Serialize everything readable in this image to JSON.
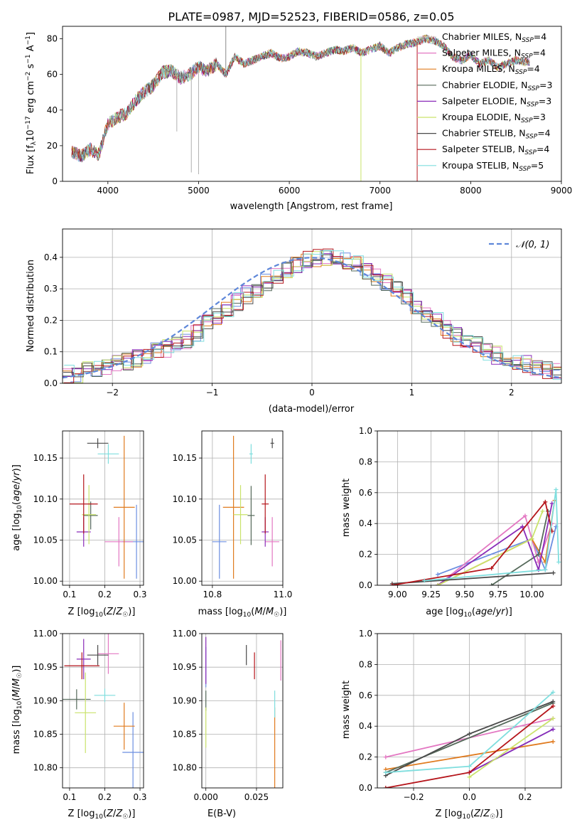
{
  "figure_title": "PLATE=0987, MJD=52523, FIBERID=0586, z=0.05",
  "colors": [
    "#d6d6d6",
    "#e377c2",
    "#e07b1f",
    "#55695a",
    "#8a2bb8",
    "#c9e36a",
    "#4a4a4a",
    "#b5151b",
    "#7fdede"
  ],
  "ssp_colors": [
    "#6b8ee0",
    "#e377c2",
    "#e07b1f",
    "#55695a",
    "#8a2bb8",
    "#c9e36a",
    "#4a4a4a",
    "#b5151b",
    "#7fdede"
  ],
  "legend": [
    {
      "main": "Chabrier MILES, N",
      "sub": "SSP",
      "suffix": "=4"
    },
    {
      "main": "Salpeter MILES, N",
      "sub": "SSP",
      "suffix": "=4"
    },
    {
      "main": "Kroupa MILES, N",
      "sub": "SSP",
      "suffix": "=4"
    },
    {
      "main": "Chabrier ELODIE, N",
      "sub": "SSP",
      "suffix": "=3"
    },
    {
      "main": "Salpeter ELODIE, N",
      "sub": "SSP",
      "suffix": "=3"
    },
    {
      "main": "Kroupa ELODIE, N",
      "sub": "SSP",
      "suffix": "=3"
    },
    {
      "main": "Chabrier STELIB, N",
      "sub": "SSP",
      "suffix": "=4"
    },
    {
      "main": "Salpeter STELIB, N",
      "sub": "SSP",
      "suffix": "=4"
    },
    {
      "main": "Kroupa STELIB, N",
      "sub": "SSP",
      "suffix": "=5"
    }
  ],
  "chart_data": [
    {
      "id": "spectrum",
      "type": "line",
      "xlabel": "wavelength [Angstrom, rest frame]",
      "ylabel": "Flux [f_λ 10^-17 erg cm^-2 s^-1 A^-1]",
      "xlim": [
        3500,
        9000
      ],
      "ylim": [
        0,
        87
      ],
      "xticks": [
        4000,
        5000,
        6000,
        7000,
        8000,
        9000
      ],
      "yticks": [
        0,
        20,
        40,
        60,
        80
      ],
      "grid": false,
      "legend_position": "right",
      "x": [
        3600,
        3700,
        3800,
        3900,
        4000,
        4100,
        4200,
        4300,
        4400,
        4500,
        4600,
        4700,
        4800,
        4900,
        5000,
        5100,
        5200,
        5300,
        5400,
        5500,
        5600,
        5700,
        5800,
        5900,
        6000,
        6100,
        6200,
        6300,
        6400,
        6500,
        6600,
        6700,
        6800,
        6900,
        7000,
        7100,
        7200,
        7300,
        7400,
        7500,
        7600,
        7700,
        7800,
        7900,
        8000,
        8100,
        8200,
        8300,
        8400,
        8500,
        8600
      ],
      "y": [
        17,
        14,
        18,
        15,
        32,
        36,
        38,
        45,
        50,
        54,
        61,
        62,
        58,
        60,
        64,
        62,
        66,
        60,
        70,
        66,
        68,
        70,
        72,
        69,
        70,
        73,
        72,
        70,
        72,
        74,
        73,
        75,
        72,
        74,
        76,
        72,
        75,
        77,
        78,
        80,
        79,
        76,
        70,
        68,
        71,
        66,
        68,
        64,
        66,
        68,
        67
      ],
      "dips": [
        [
          3880,
          12
        ],
        [
          4760,
          28
        ],
        [
          4920,
          5
        ],
        [
          5000,
          4
        ],
        [
          6790,
          0
        ],
        [
          7410,
          0
        ]
      ],
      "spike": [
        5300,
        87
      ]
    },
    {
      "id": "residuals",
      "type": "line",
      "xlabel": "(data-model)/error",
      "ylabel": "Normed distribution",
      "xlim": [
        -2.5,
        2.5
      ],
      "ylim": [
        0,
        0.49
      ],
      "xticks": [
        -2,
        -1,
        0,
        1,
        2
      ],
      "yticks": [
        0.0,
        0.1,
        0.2,
        0.3,
        0.4
      ],
      "grid": true,
      "legend": [
        {
          "label": "𝒩(0, 1)"
        }
      ],
      "legend_position": "top-right",
      "bin_width": 0.1,
      "bins_start": -2.5,
      "histogram": [
        0.03,
        0.03,
        0.04,
        0.04,
        0.05,
        0.06,
        0.07,
        0.08,
        0.09,
        0.1,
        0.11,
        0.13,
        0.14,
        0.16,
        0.19,
        0.21,
        0.23,
        0.26,
        0.28,
        0.3,
        0.32,
        0.34,
        0.36,
        0.38,
        0.39,
        0.4,
        0.4,
        0.4,
        0.39,
        0.38,
        0.36,
        0.34,
        0.32,
        0.3,
        0.27,
        0.25,
        0.22,
        0.2,
        0.17,
        0.15,
        0.13,
        0.12,
        0.1,
        0.09,
        0.08,
        0.07,
        0.06,
        0.05,
        0.04,
        0.04
      ]
    },
    {
      "id": "age-vs-Z",
      "type": "scatter",
      "xlabel": "Z [log10(Z/Z☉)]",
      "ylabel": "age [log10(age/yr)]",
      "xlim": [
        0.08,
        0.31
      ],
      "ylim": [
        9.995,
        10.183
      ],
      "xticks": [
        0.1,
        0.2,
        0.3
      ],
      "yticks": [
        10.0,
        10.05,
        10.1,
        10.15
      ],
      "grid": true,
      "points": [
        {
          "x": 0.29,
          "y": 10.048,
          "xerr": 0.04,
          "yerr": 0.045
        },
        {
          "x": 0.24,
          "y": 10.048,
          "xerr": 0.04,
          "yerr": 0.03
        },
        {
          "x": 0.255,
          "y": 10.09,
          "xerr": 0.03,
          "yerr": 0.087
        },
        {
          "x": 0.16,
          "y": 10.08,
          "xerr": 0.02,
          "yerr": 0.017
        },
        {
          "x": 0.14,
          "y": 10.06,
          "xerr": 0.02,
          "yerr": 0.018
        },
        {
          "x": 0.155,
          "y": 10.081,
          "xerr": 0.02,
          "yerr": 0.036
        },
        {
          "x": 0.18,
          "y": 10.168,
          "xerr": 0.03,
          "yerr": 0.006
        },
        {
          "x": 0.14,
          "y": 10.094,
          "xerr": 0.04,
          "yerr": 0.036
        },
        {
          "x": 0.21,
          "y": 10.155,
          "xerr": 0.03,
          "yerr": 0.012
        }
      ]
    },
    {
      "id": "age-vs-mass",
      "type": "scatter",
      "xlabel": "mass [log10(M/M☉)]",
      "ylabel": "",
      "xlim": [
        10.77,
        11.0
      ],
      "ylim": [
        9.995,
        10.183
      ],
      "xticks": [
        10.8,
        11.0
      ],
      "yticks": [
        10.0,
        10.05,
        10.1,
        10.15
      ],
      "grid": true,
      "points": [
        {
          "x": 10.82,
          "y": 10.048,
          "xerr": 0.02,
          "yerr": 0.045
        },
        {
          "x": 10.97,
          "y": 10.048,
          "xerr": 0.02,
          "yerr": 0.03
        },
        {
          "x": 10.86,
          "y": 10.09,
          "xerr": 0.03,
          "yerr": 0.087
        },
        {
          "x": 10.91,
          "y": 10.08,
          "xerr": 0.01,
          "yerr": 0.036
        },
        {
          "x": 10.95,
          "y": 10.06,
          "xerr": 0.01,
          "yerr": 0.018
        },
        {
          "x": 10.88,
          "y": 10.081,
          "xerr": 0.02,
          "yerr": 0.036
        },
        {
          "x": 10.97,
          "y": 10.168,
          "xerr": 0.005,
          "yerr": 0.006
        },
        {
          "x": 10.95,
          "y": 10.094,
          "xerr": 0.01,
          "yerr": 0.036
        },
        {
          "x": 10.91,
          "y": 10.155,
          "xerr": 0.005,
          "yerr": 0.012
        }
      ]
    },
    {
      "id": "mass-weight-vs-age",
      "type": "line",
      "xlabel": "age [log10(age/yr)]",
      "ylabel": "mass weight",
      "xlim": [
        8.85,
        10.22
      ],
      "ylim": [
        0,
        1
      ],
      "xticks": [
        9.0,
        9.25,
        9.5,
        9.75,
        10.0
      ],
      "yticks": [
        0.0,
        0.2,
        0.4,
        0.6,
        0.8,
        1.0
      ],
      "grid": true,
      "series": [
        {
          "x": [
            9.3,
            10.0,
            10.1,
            10.18
          ],
          "y": [
            0.07,
            0.3,
            0.1,
            0.38
          ]
        },
        {
          "x": [
            9.3,
            9.95,
            10.05,
            10.15
          ],
          "y": [
            0.0,
            0.45,
            0.15,
            0.4
          ]
        },
        {
          "x": [
            9.3,
            10.0,
            10.1,
            10.17
          ],
          "y": [
            0.0,
            0.3,
            0.15,
            0.55
          ]
        },
        {
          "x": [
            9.7,
            10.05,
            10.12
          ],
          "y": [
            0.0,
            0.2,
            0.48
          ]
        },
        {
          "x": [
            9.3,
            9.93,
            10.05,
            10.15
          ],
          "y": [
            0.0,
            0.38,
            0.1,
            0.53
          ]
        },
        {
          "x": [
            9.3,
            10.0,
            10.08
          ],
          "y": [
            0.0,
            0.3,
            0.48
          ]
        },
        {
          "x": [
            8.96,
            10.16
          ],
          "y": [
            0.01,
            0.08
          ]
        },
        {
          "x": [
            8.96,
            9.7,
            10.1,
            10.15
          ],
          "y": [
            0.0,
            0.11,
            0.54,
            0.35
          ]
        },
        {
          "x": [
            9.2,
            10.1,
            10.18,
            10.2
          ],
          "y": [
            0.03,
            0.1,
            0.62,
            0.15
          ]
        }
      ]
    },
    {
      "id": "mass-vs-Z",
      "type": "scatter",
      "xlabel": "Z [log10(Z/Z☉)]",
      "ylabel": "mass [log10(M/M☉)]",
      "xlim": [
        0.08,
        0.31
      ],
      "ylim": [
        10.77,
        11.0
      ],
      "xticks": [
        0.1,
        0.2,
        0.3
      ],
      "yticks": [
        10.8,
        10.85,
        10.9,
        10.95,
        11.0
      ],
      "grid": true,
      "points": [
        {
          "x": 0.28,
          "y": 10.823,
          "xerr": 0.03,
          "yerr": 0.06
        },
        {
          "x": 0.21,
          "y": 10.97,
          "xerr": 0.03,
          "yerr": 0.03
        },
        {
          "x": 0.255,
          "y": 10.862,
          "xerr": 0.03,
          "yerr": 0.035
        },
        {
          "x": 0.12,
          "y": 10.902,
          "xerr": 0.04,
          "yerr": 0.015
        },
        {
          "x": 0.14,
          "y": 10.962,
          "xerr": 0.02,
          "yerr": 0.03
        },
        {
          "x": 0.145,
          "y": 10.882,
          "xerr": 0.03,
          "yerr": 0.06
        },
        {
          "x": 0.18,
          "y": 10.968,
          "xerr": 0.03,
          "yerr": 0.015
        },
        {
          "x": 0.135,
          "y": 10.952,
          "xerr": 0.05,
          "yerr": 0.02
        },
        {
          "x": 0.2,
          "y": 10.908,
          "xerr": 0.03,
          "yerr": 0.01
        }
      ]
    },
    {
      "id": "mass-vs-EBV",
      "type": "scatter",
      "xlabel": "E(B-V)",
      "ylabel": "",
      "xlim": [
        -0.002,
        0.038
      ],
      "ylim": [
        10.77,
        11.0
      ],
      "xticks": [
        0.0,
        0.025
      ],
      "yticks": [
        10.8,
        10.85,
        10.9,
        10.95,
        11.0
      ],
      "grid": true,
      "points": [
        {
          "x": 0.0,
          "y": 10.95,
          "xerr": 0.0,
          "yerr": 0.03
        },
        {
          "x": 0.037,
          "y": 10.96,
          "xerr": 0.0,
          "yerr": 0.03
        },
        {
          "x": 0.034,
          "y": 10.83,
          "xerr": 0.0,
          "yerr": 0.06
        },
        {
          "x": 0.0,
          "y": 10.9,
          "xerr": 0.0,
          "yerr": 0.015
        },
        {
          "x": 0.0,
          "y": 10.96,
          "xerr": 0.0,
          "yerr": 0.035
        },
        {
          "x": 0.0,
          "y": 10.86,
          "xerr": 0.0,
          "yerr": 0.03
        },
        {
          "x": 0.02,
          "y": 10.968,
          "xerr": 0.0,
          "yerr": 0.015
        },
        {
          "x": 0.024,
          "y": 10.952,
          "xerr": 0.0,
          "yerr": 0.02
        },
        {
          "x": 0.034,
          "y": 10.895,
          "xerr": 0.0,
          "yerr": 0.02
        }
      ]
    },
    {
      "id": "mass-weight-vs-Z",
      "type": "line",
      "xlabel": "Z [log10(Z/Z☉)]",
      "ylabel": "mass weight",
      "xlim": [
        -0.33,
        0.33
      ],
      "ylim": [
        0,
        1
      ],
      "xticks": [
        -0.2,
        0.0,
        0.2
      ],
      "yticks": [
        0.0,
        0.2,
        0.4,
        0.6,
        0.8,
        1.0
      ],
      "grid": true,
      "series": [
        {
          "x": [
            0.0,
            0.3
          ],
          "y": [
            0.1,
            0.38
          ]
        },
        {
          "x": [
            -0.3,
            0.3
          ],
          "y": [
            0.2,
            0.45
          ]
        },
        {
          "x": [
            -0.3,
            0.3
          ],
          "y": [
            0.12,
            0.3
          ]
        },
        {
          "x": [
            -0.3,
            0.3
          ],
          "y": [
            0.1,
            0.55
          ]
        },
        {
          "x": [
            0.0,
            0.3
          ],
          "y": [
            0.1,
            0.38
          ]
        },
        {
          "x": [
            0.0,
            0.3
          ],
          "y": [
            0.07,
            0.45
          ]
        },
        {
          "x": [
            -0.3,
            0.0,
            0.3
          ],
          "y": [
            0.08,
            0.35,
            0.56
          ]
        },
        {
          "x": [
            -0.3,
            0.0,
            0.3
          ],
          "y": [
            0.0,
            0.1,
            0.53
          ]
        },
        {
          "x": [
            -0.3,
            0.0,
            0.3
          ],
          "y": [
            0.1,
            0.14,
            0.62
          ]
        }
      ]
    }
  ],
  "axis_labels": {
    "spectrum_x": "wavelength [Angstrom, rest frame]",
    "residual_x": "(data-model)/error",
    "residual_y": "Normed distribution",
    "mass_weight": "mass weight",
    "ebv": "E(B-V)",
    "norm_legend": "𝒩(0, 1)"
  }
}
